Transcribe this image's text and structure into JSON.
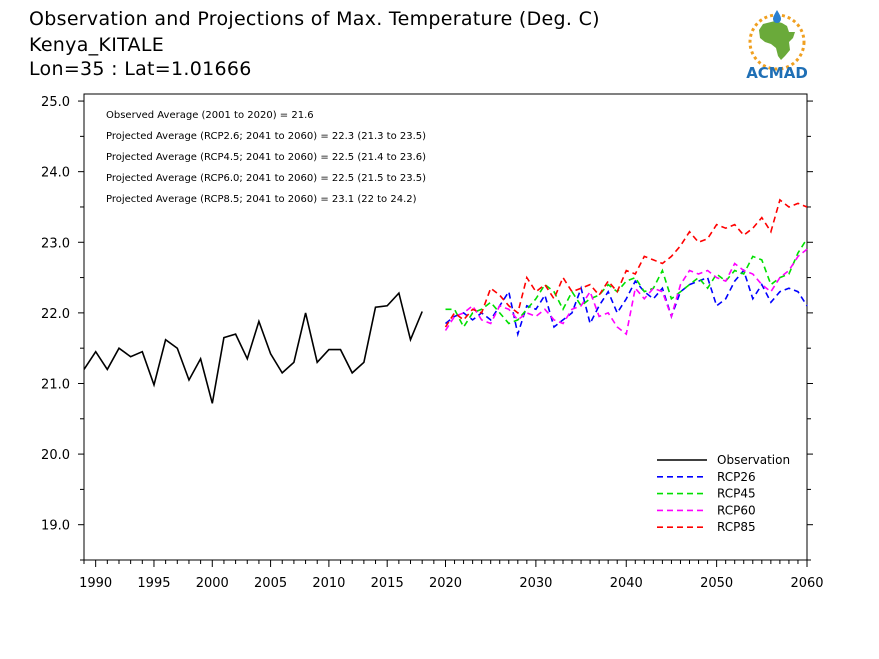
{
  "header": {
    "line1": "Observation and Projections of Max. Temperature (Deg. C)",
    "line2": "Kenya_KITALE",
    "line3": "Lon=35 : Lat=1.01666"
  },
  "logo": {
    "text": "ACMAD",
    "icon": "acmad-africa-logo",
    "colors": {
      "africa": "#6aaa3a",
      "sun": "#f0a020",
      "text": "#1f6fb5",
      "drop": "#2a7fd0"
    }
  },
  "chart_data": {
    "type": "line",
    "xlim": [
      1989,
      2060
    ],
    "ylim": [
      18.5,
      25.1
    ],
    "x_ticks": [
      1990,
      1995,
      2000,
      2005,
      2010,
      2015,
      2020,
      2030,
      2040,
      2050,
      2060
    ],
    "y_ticks": [
      19.0,
      20.0,
      21.0,
      22.0,
      23.0,
      24.0,
      25.0
    ],
    "y_tick_labels": [
      "19.0",
      "20.0",
      "21.0",
      "22.0",
      "23.0",
      "24.0",
      "25.0"
    ],
    "annotations": [
      "Observed Average (2001 to 2020) = 21.6",
      "Projected Average (RCP2.6; 2041 to 2060) = 22.3 (21.3 to 23.5)",
      "Projected Average (RCP4.5; 2041 to 2060) = 22.5 (21.4 to 23.6)",
      "Projected Average (RCP6.0; 2041 to 2060) = 22.5 (21.5 to 23.5)",
      "Projected Average (RCP8.5; 2041 to 2060) = 23.1 (22 to 24.2)"
    ],
    "legend_position": "bottom-right",
    "series": [
      {
        "name": "Observation",
        "color": "#000000",
        "dashed": false,
        "x_start": 1989,
        "values": [
          21.2,
          21.45,
          21.2,
          21.5,
          21.38,
          21.45,
          20.98,
          21.62,
          21.5,
          21.05,
          21.35,
          20.72,
          21.65,
          21.7,
          21.35,
          21.88,
          21.42,
          21.15,
          21.3,
          22.0,
          21.3,
          21.48,
          21.48,
          21.15,
          21.3,
          22.08,
          22.1,
          22.28,
          21.62,
          22.02
        ]
      },
      {
        "name": "RCP26",
        "color": "#0000ff",
        "dashed": true,
        "x_start": 2020,
        "values": [
          21.85,
          21.95,
          22.0,
          21.9,
          22.0,
          21.9,
          22.1,
          22.3,
          21.7,
          22.1,
          22.05,
          22.25,
          21.8,
          21.9,
          22.0,
          22.35,
          21.85,
          22.1,
          22.3,
          22.0,
          22.2,
          22.45,
          22.3,
          22.2,
          22.35,
          21.95,
          22.3,
          22.4,
          22.45,
          22.5,
          22.1,
          22.2,
          22.45,
          22.6,
          22.2,
          22.4,
          22.15,
          22.3,
          22.35,
          22.3,
          22.1
        ]
      },
      {
        "name": "RCP45",
        "color": "#00e000",
        "dashed": true,
        "x_start": 2020,
        "values": [
          22.05,
          22.05,
          21.8,
          22.0,
          22.05,
          22.15,
          22.0,
          21.85,
          21.9,
          22.05,
          22.2,
          22.4,
          22.3,
          22.05,
          22.3,
          22.1,
          22.2,
          22.25,
          22.4,
          22.3,
          22.45,
          22.5,
          22.3,
          22.35,
          22.6,
          22.2,
          22.3,
          22.4,
          22.5,
          22.35,
          22.55,
          22.45,
          22.6,
          22.55,
          22.8,
          22.75,
          22.4,
          22.5,
          22.55,
          22.85,
          23.05
        ]
      },
      {
        "name": "RCP60",
        "color": "#ff00ff",
        "dashed": true,
        "x_start": 2020,
        "values": [
          21.75,
          21.95,
          22.0,
          22.1,
          21.9,
          21.85,
          22.1,
          22.05,
          21.9,
          22.0,
          21.95,
          22.05,
          21.9,
          21.85,
          22.05,
          22.1,
          22.3,
          21.95,
          22.0,
          21.8,
          21.7,
          22.35,
          22.2,
          22.35,
          22.3,
          21.95,
          22.4,
          22.6,
          22.55,
          22.6,
          22.5,
          22.45,
          22.7,
          22.6,
          22.55,
          22.4,
          22.3,
          22.5,
          22.6,
          22.8,
          22.9
        ]
      },
      {
        "name": "RCP85",
        "color": "#ff0000",
        "dashed": true,
        "x_start": 2020,
        "values": [
          21.8,
          22.0,
          21.9,
          22.05,
          22.0,
          22.35,
          22.25,
          22.1,
          22.0,
          22.5,
          22.3,
          22.4,
          22.2,
          22.5,
          22.3,
          22.35,
          22.4,
          22.25,
          22.45,
          22.3,
          22.6,
          22.55,
          22.8,
          22.75,
          22.7,
          22.8,
          22.95,
          23.15,
          23.0,
          23.05,
          23.25,
          23.2,
          23.25,
          23.1,
          23.2,
          23.35,
          23.15,
          23.6,
          23.5,
          23.55,
          23.5
        ]
      }
    ]
  }
}
